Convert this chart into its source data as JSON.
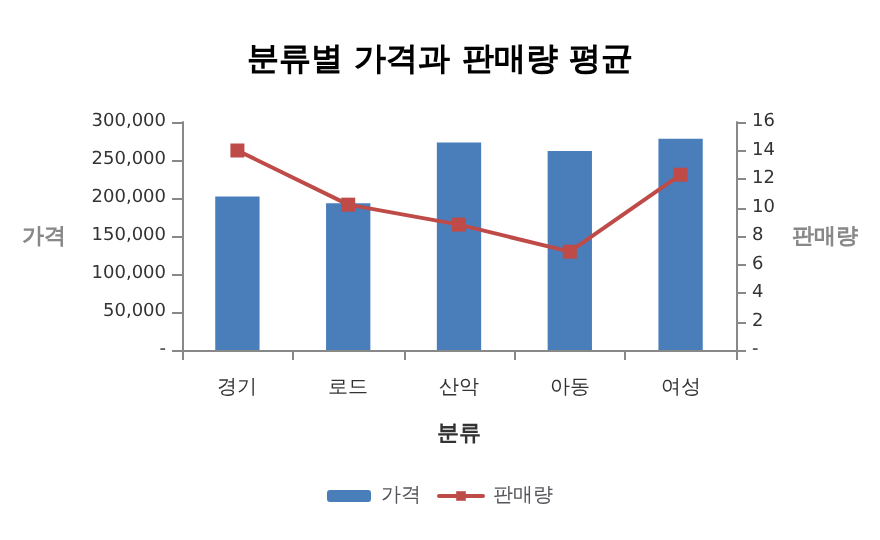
{
  "chart_data": {
    "type": "bar",
    "title": "분류별 가격과 판매량 평균",
    "xlabel": "분류",
    "ylabel": "가격",
    "y2label": "판매량",
    "categories": [
      "경기",
      "로드",
      "산악",
      "아동",
      "여성"
    ],
    "series": [
      {
        "name": "가격",
        "color": "#4a7ebb",
        "values": [
          202000,
          193000,
          273000,
          262000,
          278000
        ]
      },
      {
        "name": "판매량",
        "type": "line",
        "axis": "y2",
        "color": "#be4b48",
        "marker": "square",
        "values": [
          14.0,
          10.2,
          8.8,
          6.9,
          12.3
        ]
      }
    ],
    "ylim": [
      0,
      300000
    ],
    "yticks": [
      {
        "value": 0,
        "label": "-"
      },
      {
        "value": 50000,
        "label": "50,000"
      },
      {
        "value": 100000,
        "label": "100,000"
      },
      {
        "value": 150000,
        "label": "150,000"
      },
      {
        "value": 200000,
        "label": "200,000"
      },
      {
        "value": 250000,
        "label": "250,000"
      },
      {
        "value": 300000,
        "label": "300,000"
      }
    ],
    "y2lim": [
      0,
      16
    ],
    "y2ticks": [
      {
        "value": 0,
        "label": "-"
      },
      2,
      4,
      6,
      8,
      10,
      12,
      14,
      16
    ],
    "grid": false,
    "legend": "bottom"
  }
}
